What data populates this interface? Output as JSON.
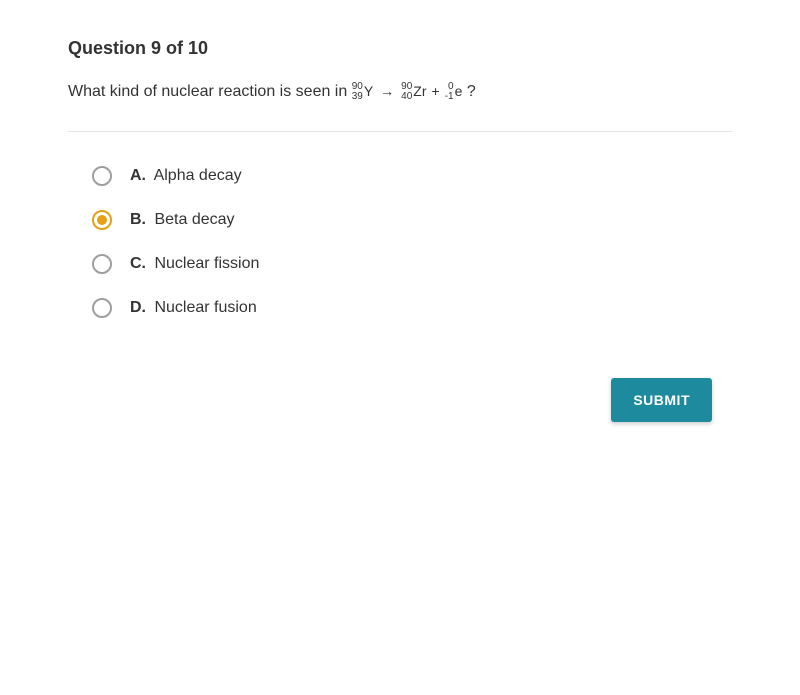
{
  "question": {
    "header": "Question 9 of 10",
    "prompt_prefix": "What kind of nuclear reaction is seen in ",
    "prompt_suffix": " ?",
    "equation": {
      "reactant": {
        "mass": "90",
        "atomic": "39",
        "symbol": "Y"
      },
      "products": [
        {
          "mass": "90",
          "atomic": "40",
          "symbol": "Zr"
        },
        {
          "mass": "0",
          "atomic": "-1",
          "symbol": "e"
        }
      ]
    }
  },
  "options": [
    {
      "letter": "A.",
      "text": "Alpha decay",
      "selected": false
    },
    {
      "letter": "B.",
      "text": "Beta decay",
      "selected": true
    },
    {
      "letter": "C.",
      "text": "Nuclear fission",
      "selected": false
    },
    {
      "letter": "D.",
      "text": "Nuclear fusion",
      "selected": false
    }
  ],
  "submit_label": "SUBMIT",
  "colors": {
    "accent": "#e69f16",
    "submit_bg": "#1d8a9e",
    "text": "#333333",
    "radio_border": "#9e9e9e",
    "divider": "#e5e5e5"
  }
}
